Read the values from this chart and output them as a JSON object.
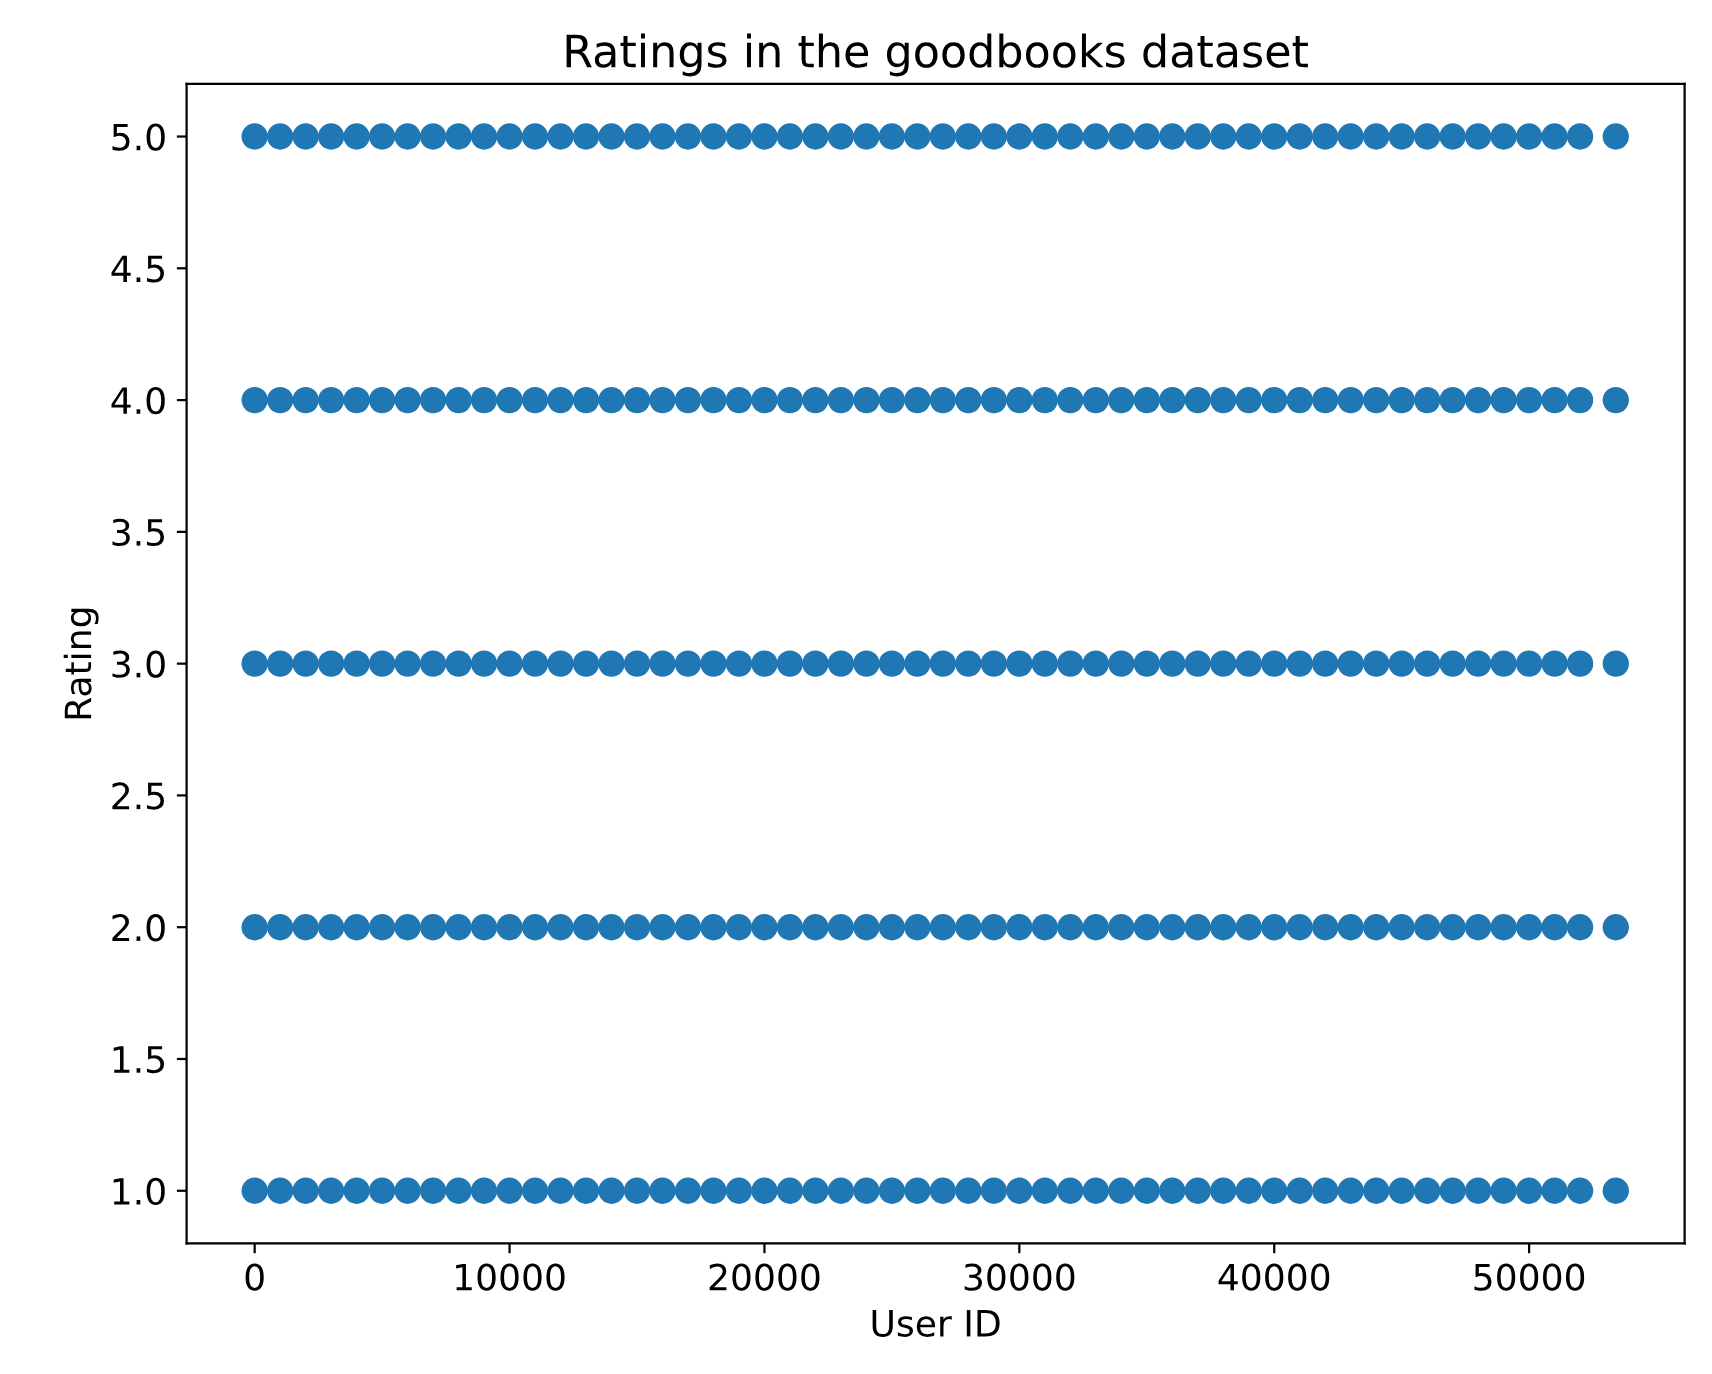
{
  "chart_data": {
    "type": "scatter",
    "title": "Ratings in the goodbooks dataset",
    "xlabel": "User ID",
    "ylabel": "Rating",
    "xlim": [
      -2670,
      56100
    ],
    "xticks": [
      0,
      10000,
      20000,
      30000,
      40000,
      50000
    ],
    "ylim": [
      0.8,
      5.2
    ],
    "yticks": [
      {
        "value": 1,
        "label": "1.0"
      },
      {
        "value": 1.5,
        "label": "1.5"
      },
      {
        "value": 2,
        "label": "2.0"
      },
      {
        "value": 2.5,
        "label": "2.5"
      },
      {
        "value": 3,
        "label": "3.0"
      },
      {
        "value": 3.5,
        "label": "3.5"
      },
      {
        "value": 4,
        "label": "4.0"
      },
      {
        "value": 4.5,
        "label": "4.5"
      },
      {
        "value": 5,
        "label": "5.0"
      }
    ],
    "marker": "circle",
    "grid": false,
    "series": [
      {
        "color": "#1f77b4",
        "x": [
          0,
          1000,
          2000,
          3000,
          4000,
          5000,
          6000,
          7000,
          8000,
          9000,
          10000,
          11000,
          12000,
          13000,
          14000,
          15000,
          16000,
          17000,
          18000,
          19000,
          20000,
          21000,
          22000,
          23000,
          24000,
          25000,
          26000,
          27000,
          28000,
          29000,
          30000,
          31000,
          32000,
          33000,
          34000,
          35000,
          36000,
          37000,
          38000,
          39000,
          40000,
          41000,
          42000,
          43000,
          44000,
          45000,
          46000,
          47000,
          48000,
          49000,
          50000,
          51000,
          52000,
          53400
        ],
        "values": [
          5,
          5,
          5,
          5,
          5,
          5,
          5,
          5,
          5,
          5,
          5,
          5,
          5,
          5,
          5,
          5,
          5,
          5,
          5,
          5,
          5,
          5,
          5,
          5,
          5,
          5,
          5,
          5,
          5,
          5,
          5,
          5,
          5,
          5,
          5,
          5,
          5,
          5,
          5,
          5,
          5,
          5,
          5,
          5,
          5,
          5,
          5,
          5,
          5,
          5,
          5,
          5,
          5,
          5
        ]
      },
      {
        "color": "#1f77b4",
        "x": [
          0,
          1000,
          2000,
          3000,
          4000,
          5000,
          6000,
          7000,
          8000,
          9000,
          10000,
          11000,
          12000,
          13000,
          14000,
          15000,
          16000,
          17000,
          18000,
          19000,
          20000,
          21000,
          22000,
          23000,
          24000,
          25000,
          26000,
          27000,
          28000,
          29000,
          30000,
          31000,
          32000,
          33000,
          34000,
          35000,
          36000,
          37000,
          38000,
          39000,
          40000,
          41000,
          42000,
          43000,
          44000,
          45000,
          46000,
          47000,
          48000,
          49000,
          50000,
          51000,
          52000,
          53400
        ],
        "values": [
          4,
          4,
          4,
          4,
          4,
          4,
          4,
          4,
          4,
          4,
          4,
          4,
          4,
          4,
          4,
          4,
          4,
          4,
          4,
          4,
          4,
          4,
          4,
          4,
          4,
          4,
          4,
          4,
          4,
          4,
          4,
          4,
          4,
          4,
          4,
          4,
          4,
          4,
          4,
          4,
          4,
          4,
          4,
          4,
          4,
          4,
          4,
          4,
          4,
          4,
          4,
          4,
          4,
          4
        ]
      },
      {
        "color": "#1f77b4",
        "x": [
          0,
          1000,
          2000,
          3000,
          4000,
          5000,
          6000,
          7000,
          8000,
          9000,
          10000,
          11000,
          12000,
          13000,
          14000,
          15000,
          16000,
          17000,
          18000,
          19000,
          20000,
          21000,
          22000,
          23000,
          24000,
          25000,
          26000,
          27000,
          28000,
          29000,
          30000,
          31000,
          32000,
          33000,
          34000,
          35000,
          36000,
          37000,
          38000,
          39000,
          40000,
          41000,
          42000,
          43000,
          44000,
          45000,
          46000,
          47000,
          48000,
          49000,
          50000,
          51000,
          52000,
          53400
        ],
        "values": [
          3,
          3,
          3,
          3,
          3,
          3,
          3,
          3,
          3,
          3,
          3,
          3,
          3,
          3,
          3,
          3,
          3,
          3,
          3,
          3,
          3,
          3,
          3,
          3,
          3,
          3,
          3,
          3,
          3,
          3,
          3,
          3,
          3,
          3,
          3,
          3,
          3,
          3,
          3,
          3,
          3,
          3,
          3,
          3,
          3,
          3,
          3,
          3,
          3,
          3,
          3,
          3,
          3,
          3
        ]
      },
      {
        "color": "#1f77b4",
        "x": [
          0,
          1000,
          2000,
          3000,
          4000,
          5000,
          6000,
          7000,
          8000,
          9000,
          10000,
          11000,
          12000,
          13000,
          14000,
          15000,
          16000,
          17000,
          18000,
          19000,
          20000,
          21000,
          22000,
          23000,
          24000,
          25000,
          26000,
          27000,
          28000,
          29000,
          30000,
          31000,
          32000,
          33000,
          34000,
          35000,
          36000,
          37000,
          38000,
          39000,
          40000,
          41000,
          42000,
          43000,
          44000,
          45000,
          46000,
          47000,
          48000,
          49000,
          50000,
          51000,
          52000,
          53400
        ],
        "values": [
          2,
          2,
          2,
          2,
          2,
          2,
          2,
          2,
          2,
          2,
          2,
          2,
          2,
          2,
          2,
          2,
          2,
          2,
          2,
          2,
          2,
          2,
          2,
          2,
          2,
          2,
          2,
          2,
          2,
          2,
          2,
          2,
          2,
          2,
          2,
          2,
          2,
          2,
          2,
          2,
          2,
          2,
          2,
          2,
          2,
          2,
          2,
          2,
          2,
          2,
          2,
          2,
          2,
          2
        ]
      },
      {
        "color": "#1f77b4",
        "x": [
          0,
          1000,
          2000,
          3000,
          4000,
          5000,
          6000,
          7000,
          8000,
          9000,
          10000,
          11000,
          12000,
          13000,
          14000,
          15000,
          16000,
          17000,
          18000,
          19000,
          20000,
          21000,
          22000,
          23000,
          24000,
          25000,
          26000,
          27000,
          28000,
          29000,
          30000,
          31000,
          32000,
          33000,
          34000,
          35000,
          36000,
          37000,
          38000,
          39000,
          40000,
          41000,
          42000,
          43000,
          44000,
          45000,
          46000,
          47000,
          48000,
          49000,
          50000,
          51000,
          52000,
          53400
        ],
        "values": [
          1,
          1,
          1,
          1,
          1,
          1,
          1,
          1,
          1,
          1,
          1,
          1,
          1,
          1,
          1,
          1,
          1,
          1,
          1,
          1,
          1,
          1,
          1,
          1,
          1,
          1,
          1,
          1,
          1,
          1,
          1,
          1,
          1,
          1,
          1,
          1,
          1,
          1,
          1,
          1,
          1,
          1,
          1,
          1,
          1,
          1,
          1,
          1,
          1,
          1,
          1,
          1,
          1,
          1
        ]
      }
    ]
  }
}
